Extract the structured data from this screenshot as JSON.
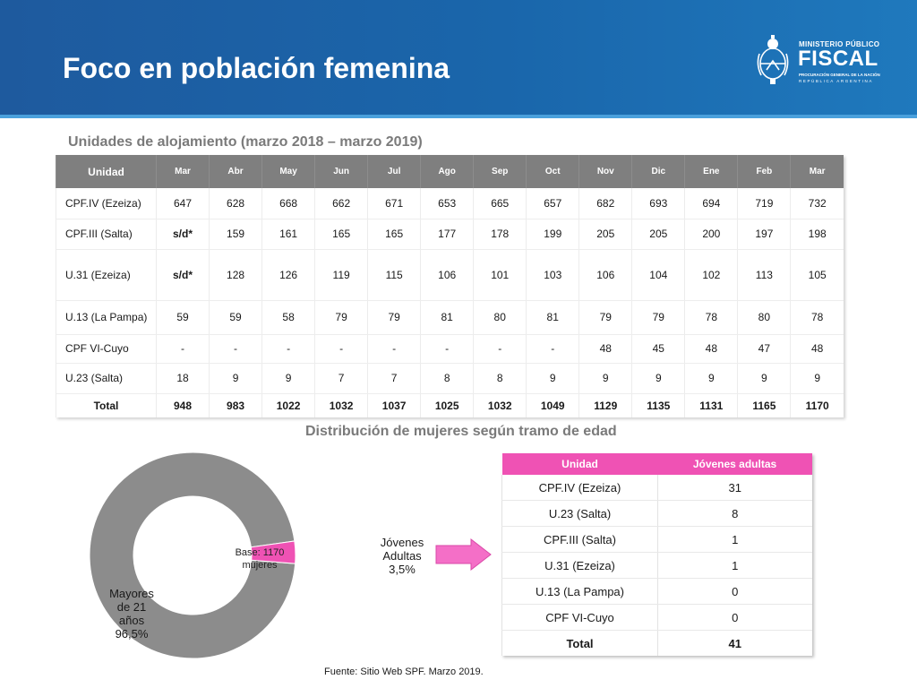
{
  "header": {
    "title": "Foco en población femenina",
    "logo": {
      "line1": "MINISTERIO PÚBLICO",
      "line2": "FISCAL",
      "line3": "PROCURACIÓN GENERAL DE LA NACIÓN",
      "line4": "REPÚBLICA ARGENTINA"
    }
  },
  "accent_colors": {
    "header_blue": "#1a66ab",
    "table_header_gray": "#7f7f7f",
    "pink": "#ef52b4",
    "donut_gray": "#8c8c8c",
    "sd_brown": "#8b3a0f"
  },
  "table1": {
    "title": "Unidades de alojamiento (marzo 2018 – marzo 2019)",
    "unit_header": "Unidad",
    "months": [
      "Mar",
      "Abr",
      "May",
      "Jun",
      "Jul",
      "Ago",
      "Sep",
      "Oct",
      "Nov",
      "Dic",
      "Ene",
      "Feb",
      "Mar"
    ],
    "rows": [
      {
        "unit": "CPF.IV (Ezeiza)",
        "values": [
          "647",
          "628",
          "668",
          "662",
          "671",
          "653",
          "665",
          "657",
          "682",
          "693",
          "694",
          "719",
          "732"
        ]
      },
      {
        "unit": "CPF.III (Salta)",
        "values": [
          "s/d*",
          "159",
          "161",
          "165",
          "165",
          "177",
          "178",
          "199",
          "205",
          "205",
          "200",
          "197",
          "198"
        ]
      },
      {
        "unit": "U.31 (Ezeiza)",
        "values": [
          "s/d*",
          "128",
          "126",
          "119",
          "115",
          "106",
          "101",
          "103",
          "106",
          "104",
          "102",
          "113",
          "105"
        ]
      },
      {
        "unit": "U.13 (La Pampa)",
        "values": [
          "59",
          "59",
          "58",
          "79",
          "79",
          "81",
          "80",
          "81",
          "79",
          "79",
          "78",
          "80",
          "78"
        ]
      },
      {
        "unit": "CPF VI-Cuyo",
        "values": [
          "-",
          "-",
          "-",
          "-",
          "-",
          "-",
          "-",
          "-",
          "48",
          "45",
          "48",
          "47",
          "48"
        ]
      },
      {
        "unit": "U.23 (Salta)",
        "values": [
          "18",
          "9",
          "9",
          "7",
          "7",
          "8",
          "8",
          "9",
          "9",
          "9",
          "9",
          "9",
          "9"
        ]
      }
    ],
    "total": {
      "label": "Total",
      "values": [
        "948",
        "983",
        "1022",
        "1032",
        "1037",
        "1025",
        "1032",
        "1049",
        "1129",
        "1135",
        "1131",
        "1165",
        "1170"
      ]
    }
  },
  "chart_data": [
    {
      "type": "table",
      "title": "Unidades de alojamiento (marzo 2018 – marzo 2019)",
      "columns": [
        "Unidad",
        "Mar",
        "Abr",
        "May",
        "Jun",
        "Jul",
        "Ago",
        "Sep",
        "Oct",
        "Nov",
        "Dic",
        "Ene",
        "Feb",
        "Mar"
      ],
      "rows": [
        [
          "CPF.IV (Ezeiza)",
          "647",
          "628",
          "668",
          "662",
          "671",
          "653",
          "665",
          "657",
          "682",
          "693",
          "694",
          "719",
          "732"
        ],
        [
          "CPF.III (Salta)",
          "s/d*",
          "159",
          "161",
          "165",
          "165",
          "177",
          "178",
          "199",
          "205",
          "205",
          "200",
          "197",
          "198"
        ],
        [
          "U.31 (Ezeiza)",
          "s/d*",
          "128",
          "126",
          "119",
          "115",
          "106",
          "101",
          "103",
          "106",
          "104",
          "102",
          "113",
          "105"
        ],
        [
          "U.13 (La Pampa)",
          "59",
          "59",
          "58",
          "79",
          "79",
          "81",
          "80",
          "81",
          "79",
          "79",
          "78",
          "80",
          "78"
        ],
        [
          "CPF VI-Cuyo",
          "-",
          "-",
          "-",
          "-",
          "-",
          "-",
          "-",
          "-",
          "48",
          "45",
          "48",
          "47",
          "48"
        ],
        [
          "U.23 (Salta)",
          "18",
          "9",
          "9",
          "7",
          "7",
          "8",
          "8",
          "9",
          "9",
          "9",
          "9",
          "9",
          "9"
        ],
        [
          "Total",
          "948",
          "983",
          "1022",
          "1032",
          "1037",
          "1025",
          "1032",
          "1049",
          "1129",
          "1135",
          "1131",
          "1165",
          "1170"
        ]
      ]
    },
    {
      "type": "pie",
      "title": "Distribución de mujeres según tramo de edad",
      "center_label": "Base: 1170 mujeres",
      "slices": [
        {
          "label": "Mayores de 21 años",
          "value": 96.5,
          "display": "96,5%",
          "color": "#8c8c8c"
        },
        {
          "label": "Jóvenes Adultas",
          "value": 3.5,
          "display": "3,5%",
          "color": "#ef52b4"
        }
      ]
    },
    {
      "type": "table",
      "columns": [
        "Unidad",
        "Jóvenes adultas"
      ],
      "rows": [
        [
          "CPF.IV (Ezeiza)",
          "31"
        ],
        [
          "U.23 (Salta)",
          "8"
        ],
        [
          "CPF.III (Salta)",
          "1"
        ],
        [
          "U.31 (Ezeiza)",
          "1"
        ],
        [
          "U.13 (La Pampa)",
          "0"
        ],
        [
          "CPF VI-Cuyo",
          "0"
        ],
        [
          "Total",
          "41"
        ]
      ]
    }
  ],
  "labels": {
    "mayores": [
      "Mayores",
      "de 21",
      "años",
      "96,5%"
    ],
    "jovenes": [
      "Jóvenes",
      "Adultas",
      "3,5%"
    ],
    "base": [
      "Base: 1170",
      "mujeres"
    ]
  },
  "table2": {
    "title": "Distribución de mujeres según tramo de edad",
    "headers": [
      "Unidad",
      "Jóvenes adultas"
    ],
    "rows": [
      {
        "unit": "CPF.IV (Ezeiza)",
        "value": "31"
      },
      {
        "unit": "U.23 (Salta)",
        "value": "8"
      },
      {
        "unit": "CPF.III (Salta)",
        "value": "1"
      },
      {
        "unit": "U.31 (Ezeiza)",
        "value": "1"
      },
      {
        "unit": "U.13 (La Pampa)",
        "value": "0"
      },
      {
        "unit": "CPF VI-Cuyo",
        "value": "0"
      }
    ],
    "total": {
      "label": "Total",
      "value": "41"
    }
  },
  "source": "Fuente: Sitio Web SPF. Marzo 2019."
}
